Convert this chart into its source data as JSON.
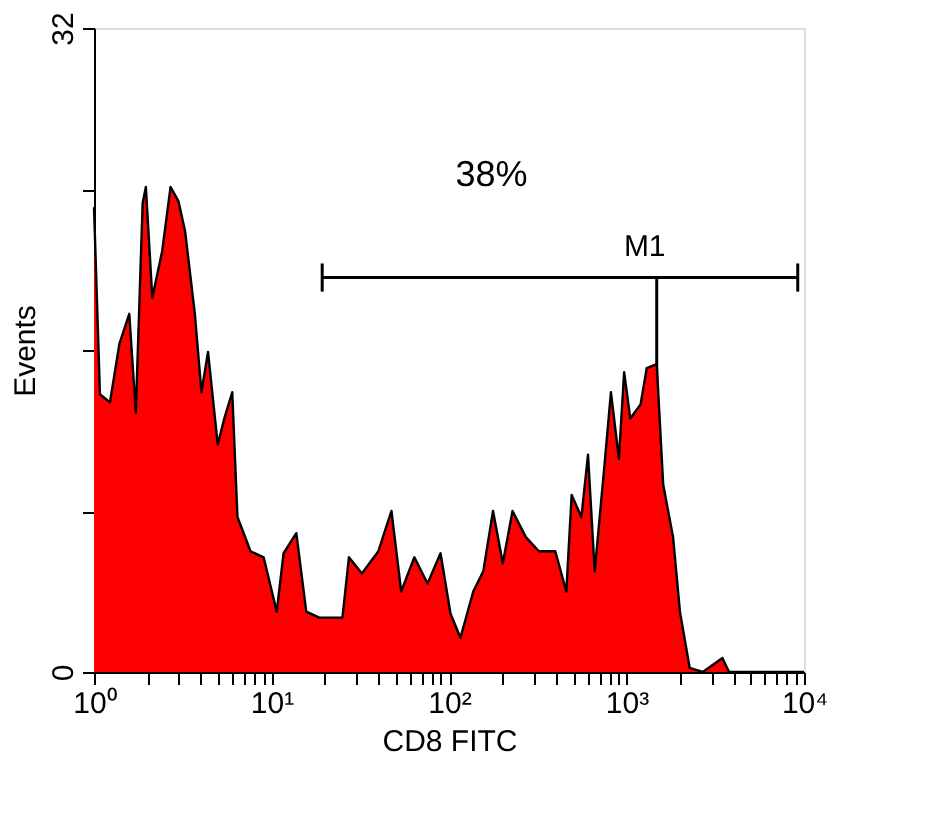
{
  "chart_data": {
    "type": "area",
    "xlabel": "CD8 FITC",
    "ylabel": "Events",
    "x": [
      1.0,
      1.08,
      1.23,
      1.39,
      1.58,
      1.72,
      1.88,
      1.96,
      2.13,
      2.42,
      2.7,
      2.99,
      3.26,
      3.7,
      4.03,
      4.39,
      4.98,
      5.42,
      6.01,
      6.43,
      7.62,
      9.03,
      10.7,
      11.7,
      13.8,
      15.7,
      18.6,
      25.1,
      27.3,
      32.3,
      40.0,
      43.5,
      47.4,
      53.8,
      63.8,
      75.7,
      89.6,
      102,
      116,
      137,
      156,
      177,
      201,
      228,
      271,
      321,
      397,
      458,
      491,
      557,
      607,
      662,
      752,
      817,
      906,
      970,
      1050,
      1200,
      1300,
      1480,
      1610,
      1830,
      2000,
      2270,
      2690,
      3470,
      3780,
      10000
    ],
    "series": [
      {
        "color": "#ff0000",
        "values": [
          23.1,
          13.8,
          13.4,
          16.3,
          17.8,
          12.9,
          23.3,
          24.1,
          18.6,
          20.9,
          24.1,
          23.4,
          21.9,
          17.8,
          13.9,
          15.9,
          11.3,
          12.6,
          13.9,
          7.7,
          6.0,
          5.7,
          3.0,
          5.9,
          6.9,
          3.0,
          2.7,
          2.7,
          5.7,
          4.9,
          6.0,
          7.0,
          8.0,
          4.0,
          5.7,
          4.4,
          5.9,
          2.9,
          1.7,
          4.0,
          5.0,
          8.0,
          5.4,
          8.0,
          6.7,
          6.0,
          6.0,
          4.0,
          8.8,
          7.7,
          10.8,
          5.0,
          10.3,
          13.9,
          10.6,
          14.9,
          12.6,
          13.3,
          15.1,
          15.3,
          9.3,
          6.7,
          3.0,
          0.2,
          0,
          0.7,
          0,
          0
        ]
      },
      {
        "type": "line",
        "color": "#000000",
        "x": [
          19.3,
          9220
        ],
        "values": [
          19.6,
          19.6
        ],
        "errors": [
          0.7,
          0.7
        ]
      }
    ],
    "log": "x",
    "xlim": [
      1,
      10000
    ],
    "xticks": [
      {
        "value": 1,
        "label": "10⁰"
      },
      {
        "value": 2,
        "label": null
      },
      {
        "value": 3,
        "label": null
      },
      {
        "value": 4,
        "label": null
      },
      {
        "value": 5,
        "label": null
      },
      {
        "value": 6,
        "label": null
      },
      {
        "value": 7,
        "label": null
      },
      {
        "value": 8,
        "label": null
      },
      {
        "value": 9,
        "label": null
      },
      {
        "value": 10,
        "label": "10¹"
      },
      {
        "value": 20,
        "label": null
      },
      {
        "value": 30,
        "label": null
      },
      {
        "value": 40,
        "label": null
      },
      {
        "value": 50,
        "label": null
      },
      {
        "value": 60,
        "label": null
      },
      {
        "value": 70,
        "label": null
      },
      {
        "value": 80,
        "label": null
      },
      {
        "value": 90,
        "label": null
      },
      {
        "value": 100,
        "label": "10²"
      },
      {
        "value": 200,
        "label": null
      },
      {
        "value": 300,
        "label": null
      },
      {
        "value": 400,
        "label": null
      },
      {
        "value": 500,
        "label": null
      },
      {
        "value": 600,
        "label": null
      },
      {
        "value": 700,
        "label": null
      },
      {
        "value": 800,
        "label": null
      },
      {
        "value": 900,
        "label": null
      },
      {
        "value": 1000,
        "label": "10³"
      },
      {
        "value": 2000,
        "label": null
      },
      {
        "value": 3000,
        "label": null
      },
      {
        "value": 4000,
        "label": null
      },
      {
        "value": 5000,
        "label": null
      },
      {
        "value": 6000,
        "label": null
      },
      {
        "value": 7000,
        "label": null
      },
      {
        "value": 8000,
        "label": null
      },
      {
        "value": 9000,
        "label": null
      },
      {
        "value": 10000,
        "label": "10⁴"
      }
    ],
    "ylim": [
      0,
      32
    ],
    "yticks": [
      0,
      {
        "value": 8,
        "label": null
      },
      {
        "value": 16,
        "label": null
      },
      {
        "value": 24,
        "label": null
      },
      32
    ],
    "annotations": [
      "38%"
    ],
    "ref_lines": [
      {
        "axis": "x",
        "value": 1480,
        "label": "M1"
      }
    ],
    "grid": false
  }
}
